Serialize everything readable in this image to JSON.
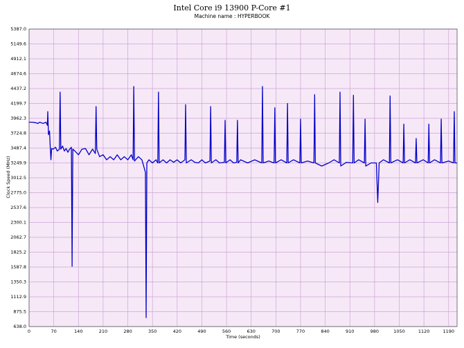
{
  "chart_data": {
    "type": "line",
    "title": "Intel Core i9 13900 P-Core #1",
    "subtitle": "Machine name : HYPERBOOK",
    "x_label": "Time (seconds)",
    "y_label": "Clock Speed (MHz)",
    "xlim": [
      0,
      1214
    ],
    "ylim": [
      638.0,
      5387.0
    ],
    "xticks": [
      0,
      70,
      140,
      210,
      280,
      350,
      420,
      490,
      560,
      630,
      700,
      770,
      840,
      910,
      980,
      1050,
      1120,
      1190
    ],
    "yticks": [
      {
        "value": 638.0,
        "label": "638.0"
      },
      {
        "value": 875.5,
        "label": "875.5"
      },
      {
        "value": 1112.9,
        "label": "1112.9"
      },
      {
        "value": 1350.3,
        "label": "1350.3"
      },
      {
        "value": 1587.8,
        "label": "1587.8"
      },
      {
        "value": 1825.2,
        "label": "1825.2"
      },
      {
        "value": 2062.7,
        "label": "2062.7"
      },
      {
        "value": 2300.1,
        "label": "2300.1"
      },
      {
        "value": 2537.6,
        "label": "2537.6"
      },
      {
        "value": 2775.0,
        "label": "2775.0"
      },
      {
        "value": 3012.5,
        "label": "3012.5"
      },
      {
        "value": 3249.9,
        "label": "3249.9"
      },
      {
        "value": 3487.4,
        "label": "3487.4"
      },
      {
        "value": 3724.8,
        "label": "3724.8"
      },
      {
        "value": 3962.3,
        "label": "3962.3"
      },
      {
        "value": 4199.7,
        "label": "4199.7"
      },
      {
        "value": 4437.2,
        "label": "4437.2"
      },
      {
        "value": 4674.6,
        "label": "4674.6"
      },
      {
        "value": 4912.1,
        "label": "4912.1"
      },
      {
        "value": 5149.6,
        "label": "5149.6"
      },
      {
        "value": 5387.0,
        "label": "5387.0"
      }
    ],
    "grid": true,
    "background": "#f7e8f7",
    "title_color": "#228b22",
    "x": [
      0,
      10,
      20,
      25,
      30,
      40,
      48,
      52,
      53,
      55,
      58,
      60,
      62,
      64,
      68,
      75,
      80,
      86,
      88,
      90,
      95,
      100,
      105,
      110,
      115,
      120,
      122,
      124,
      130,
      140,
      150,
      160,
      170,
      180,
      188,
      190,
      192,
      200,
      210,
      220,
      230,
      240,
      250,
      260,
      270,
      280,
      290,
      295,
      297,
      299,
      310,
      320,
      330,
      332,
      334,
      340,
      350,
      360,
      365,
      367,
      369,
      380,
      390,
      400,
      410,
      420,
      430,
      442,
      444,
      446,
      460,
      470,
      480,
      490,
      500,
      513,
      515,
      517,
      530,
      540,
      554,
      556,
      558,
      570,
      580,
      589,
      591,
      593,
      600,
      620,
      640,
      660,
      662,
      664,
      680,
      695,
      697,
      699,
      715,
      731,
      733,
      735,
      750,
      768,
      770,
      772,
      790,
      808,
      810,
      812,
      830,
      850,
      865,
      880,
      882,
      884,
      900,
      918,
      920,
      922,
      935,
      951,
      953,
      955,
      970,
      985,
      989,
      993,
      1005,
      1022,
      1024,
      1026,
      1045,
      1061,
      1063,
      1065,
      1080,
      1096,
      1098,
      1100,
      1118,
      1132,
      1134,
      1136,
      1150,
      1167,
      1169,
      1171,
      1190,
      1204,
      1206,
      1208,
      1214
    ],
    "series": [
      {
        "name": "Clock Speed",
        "color": "#0000c8",
        "values": [
          3900,
          3900,
          3890,
          3880,
          3900,
          3880,
          3900,
          3850,
          4070,
          3700,
          3760,
          3500,
          3300,
          3480,
          3470,
          3500,
          3440,
          3470,
          4380,
          3470,
          3520,
          3440,
          3480,
          3420,
          3470,
          3500,
          1600,
          3470,
          3440,
          3380,
          3470,
          3480,
          3380,
          3470,
          3400,
          4150,
          3470,
          3350,
          3380,
          3300,
          3350,
          3300,
          3380,
          3300,
          3350,
          3300,
          3380,
          3300,
          4470,
          3280,
          3350,
          3300,
          3100,
          780,
          3250,
          3300,
          3250,
          3300,
          3250,
          4380,
          3250,
          3300,
          3250,
          3300,
          3260,
          3300,
          3250,
          3300,
          4180,
          3250,
          3300,
          3260,
          3250,
          3300,
          3250,
          3280,
          4150,
          3250,
          3300,
          3250,
          3260,
          3930,
          3250,
          3300,
          3250,
          3260,
          3930,
          3250,
          3300,
          3250,
          3300,
          3250,
          4470,
          3250,
          3280,
          3250,
          4130,
          3250,
          3300,
          3250,
          4200,
          3250,
          3300,
          3250,
          3950,
          3250,
          3280,
          3250,
          4340,
          3250,
          3200,
          3250,
          3300,
          3250,
          4380,
          3200,
          3260,
          3250,
          4330,
          3250,
          3300,
          3250,
          3950,
          3200,
          3250,
          3250,
          2620,
          3250,
          3300,
          3250,
          4320,
          3250,
          3300,
          3250,
          3870,
          3250,
          3300,
          3250,
          3640,
          3250,
          3300,
          3250,
          3870,
          3250,
          3300,
          3250,
          3950,
          3250,
          3280,
          3250,
          4070,
          3250,
          3250
        ]
      }
    ]
  }
}
